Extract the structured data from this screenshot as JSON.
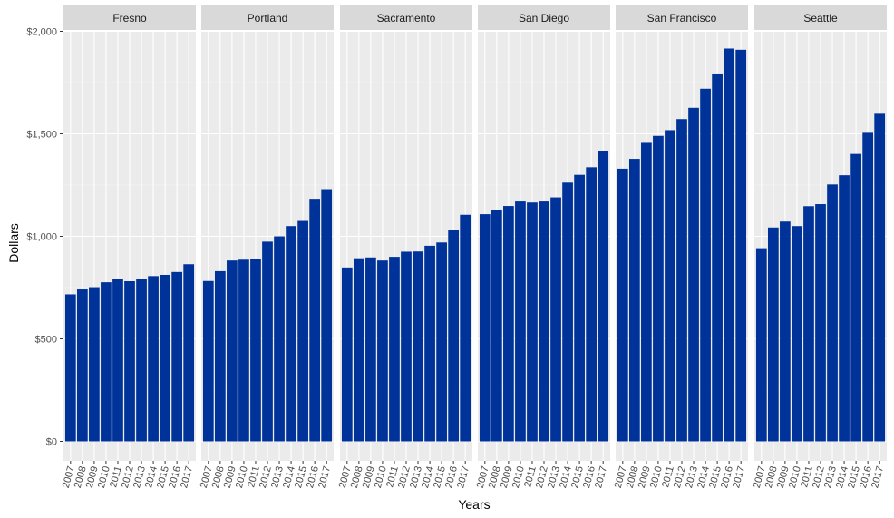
{
  "chart_data": {
    "type": "bar",
    "layout": "faceted",
    "xlabel": "Years",
    "ylabel": "Dollars",
    "ylim": [
      0,
      2000
    ],
    "y_ticks": [
      "$0",
      "$500",
      "$1,000",
      "$1,500",
      "$2,000"
    ],
    "y_tick_values": [
      0,
      500,
      1000,
      1500,
      2000
    ],
    "categories": [
      "2007",
      "2008",
      "2009",
      "2010",
      "2011",
      "2012",
      "2013",
      "2014",
      "2015",
      "2016",
      "2017"
    ],
    "grid": true,
    "bar_color": "#003399",
    "panel_background": "#ebebeb",
    "strip_background": "#d9d9d9",
    "facets": [
      {
        "name": "Fresno",
        "values": [
          717,
          741,
          752,
          776,
          790,
          781,
          790,
          806,
          812,
          826,
          864
        ]
      },
      {
        "name": "Portland",
        "values": [
          782,
          830,
          882,
          886,
          890,
          974,
          1000,
          1050,
          1075,
          1183,
          1230
        ]
      },
      {
        "name": "Sacramento",
        "values": [
          848,
          893,
          897,
          882,
          900,
          925,
          926,
          954,
          970,
          1031,
          1105
        ]
      },
      {
        "name": "San Diego",
        "values": [
          1108,
          1128,
          1148,
          1170,
          1165,
          1170,
          1190,
          1262,
          1300,
          1337,
          1415
        ]
      },
      {
        "name": "San Francisco",
        "values": [
          1330,
          1378,
          1456,
          1490,
          1518,
          1572,
          1627,
          1720,
          1790,
          1916,
          1910
        ]
      },
      {
        "name": "Seattle",
        "values": [
          942,
          1043,
          1072,
          1050,
          1147,
          1157,
          1253,
          1298,
          1402,
          1505,
          1598
        ]
      }
    ]
  }
}
